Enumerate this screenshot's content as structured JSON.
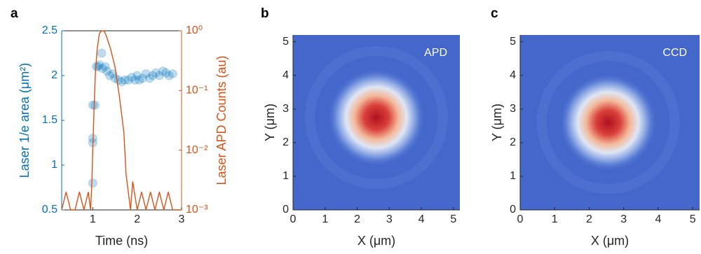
{
  "chart_data": [
    {
      "type": "scatter",
      "label": "a",
      "xlabel": "Time (ns)",
      "ylabel": "Laser 1/e area (μm²)",
      "y2label": "Laser APD Counts (au)",
      "xlim": [
        0.3,
        3
      ],
      "xticks": [
        1,
        2,
        3
      ],
      "ylim": [
        0.5,
        2.5
      ],
      "yticks": [
        0.5,
        1,
        1.5,
        2,
        2.5
      ],
      "y2lim": [
        0.001,
        1
      ],
      "y2log": true,
      "y2ticks": [
        {
          "value": 0.001,
          "label": "10⁻³"
        },
        {
          "value": 0.01,
          "label": "10⁻²"
        },
        {
          "value": 0.1,
          "label": "10⁻¹"
        },
        {
          "value": 1,
          "label": "10⁰"
        }
      ],
      "series": [
        {
          "type": "scatter",
          "color": "#0072bd",
          "x": [
            1.0,
            1.0,
            1.0,
            1.0,
            1.05,
            1.08,
            1.12,
            1.15,
            1.2,
            1.22,
            1.28,
            1.32,
            1.38,
            1.45,
            1.5,
            1.58,
            1.65,
            1.72,
            1.8,
            1.88,
            1.95,
            2.0,
            2.05,
            2.12,
            2.2,
            2.28,
            2.35,
            2.42,
            2.5,
            2.58,
            2.65,
            2.72,
            2.8
          ],
          "values": [
            0.8,
            1.25,
            1.3,
            1.67,
            1.67,
            2.1,
            2.1,
            2.12,
            2.25,
            2.08,
            2.1,
            2.05,
            2.0,
            2.02,
            1.97,
            1.95,
            1.93,
            1.95,
            1.95,
            1.98,
            1.95,
            2.0,
            1.95,
            1.97,
            2.02,
            1.97,
            2.0,
            2.03,
            2.0,
            2.05,
            2.03,
            2.0,
            2.02
          ]
        },
        {
          "type": "line",
          "axis": "y2",
          "color": "#d95319",
          "x": [
            0.3,
            0.4,
            0.5,
            0.6,
            0.7,
            0.8,
            0.9,
            0.95,
            0.98,
            1.0,
            1.03,
            1.06,
            1.1,
            1.15,
            1.2,
            1.25,
            1.3,
            1.35,
            1.4,
            1.5,
            1.6,
            1.7,
            1.75,
            1.8,
            1.85,
            1.9,
            2.0,
            2.1,
            2.2,
            2.3,
            2.4,
            2.5,
            2.6,
            2.7,
            2.8,
            2.9,
            3.0
          ],
          "values": [
            0.001,
            0.002,
            0.001,
            0.001,
            0.002,
            0.001,
            0.002,
            0.001,
            0.003,
            0.01,
            0.05,
            0.2,
            0.5,
            0.9,
            1,
            1,
            0.85,
            0.65,
            0.5,
            0.25,
            0.08,
            0.02,
            0.004,
            0.002,
            0.001,
            0.003,
            0.001,
            0.002,
            0.001,
            0.002,
            0.001,
            0.002,
            0.001,
            0.002,
            0.001,
            0.001,
            0.001
          ]
        }
      ]
    },
    {
      "type": "heatmap",
      "label": "b",
      "xlabel": "X (μm)",
      "ylabel": "Y (μm)",
      "annotation": "APD",
      "xlim": [
        0,
        5.2
      ],
      "ylim": [
        0,
        5.2
      ],
      "xticks": [
        0,
        1,
        2,
        3,
        4,
        5
      ],
      "yticks": [
        0,
        1,
        2,
        3,
        4,
        5
      ],
      "peak": [
        2.6,
        2.75
      ]
    },
    {
      "type": "heatmap",
      "label": "c",
      "xlabel": "X (μm)",
      "ylabel": "Y (μm)",
      "annotation": "CCD",
      "xlim": [
        0,
        5.2
      ],
      "ylim": [
        0,
        5.2
      ],
      "xticks": [
        0,
        1,
        2,
        3,
        4,
        5
      ],
      "yticks": [
        0,
        1,
        2,
        3,
        4,
        5
      ],
      "peak": [
        2.55,
        2.6
      ]
    }
  ]
}
